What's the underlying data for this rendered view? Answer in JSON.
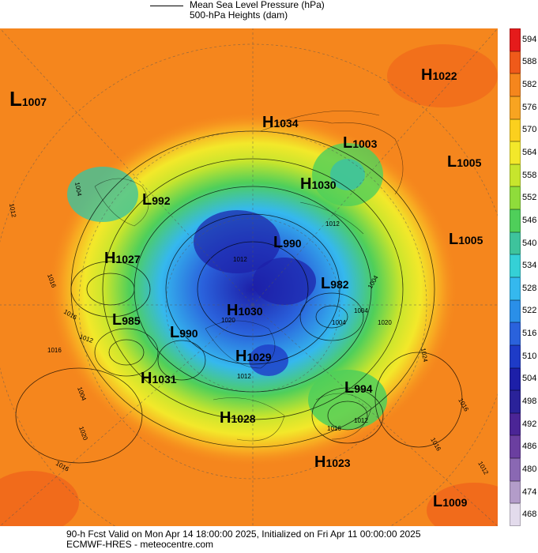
{
  "legend": {
    "line1": "Mean Sea Level Pressure (hPa)",
    "line2": "500-hPa Heights (dam)"
  },
  "colorbar": {
    "ticks": [
      "594",
      "588",
      "582",
      "576",
      "570",
      "564",
      "558",
      "552",
      "546",
      "540",
      "534",
      "528",
      "522",
      "516",
      "510",
      "504",
      "498",
      "492",
      "486",
      "480",
      "474",
      "468"
    ],
    "colors": [
      "#e51b1b",
      "#ef5a1a",
      "#f5861d",
      "#f8a421",
      "#fbd01e",
      "#f3e82a",
      "#c7e52d",
      "#8fdc3b",
      "#4fcf5a",
      "#3ec39c",
      "#35d0d6",
      "#35b8ee",
      "#2a8fe8",
      "#2a62dc",
      "#1e3bc7",
      "#1d1fa8",
      "#2a2299",
      "#4b2596",
      "#6b3fa0",
      "#8a68b3",
      "#b39cc9",
      "#e3dbec"
    ]
  },
  "systems": [
    {
      "type": "L",
      "value": "1007"
    },
    {
      "type": "H",
      "value": "1022"
    },
    {
      "type": "H",
      "value": "1034"
    },
    {
      "type": "L",
      "value": "1003"
    },
    {
      "type": "L",
      "value": "1005"
    },
    {
      "type": "H",
      "value": "1030"
    },
    {
      "type": "L",
      "value": "992"
    },
    {
      "type": "L",
      "value": "990"
    },
    {
      "type": "L",
      "value": "1005"
    },
    {
      "type": "H",
      "value": "1027"
    },
    {
      "type": "L",
      "value": "982"
    },
    {
      "type": "L",
      "value": "985"
    },
    {
      "type": "L",
      "value": "990"
    },
    {
      "type": "H",
      "value": "1030"
    },
    {
      "type": "H",
      "value": "1029"
    },
    {
      "type": "H",
      "value": "1031"
    },
    {
      "type": "L",
      "value": "994"
    },
    {
      "type": "H",
      "value": "1028"
    },
    {
      "type": "H",
      "value": "1023"
    },
    {
      "type": "L",
      "value": "1009"
    }
  ],
  "isobar_labels": [
    "1004",
    "1012",
    "1016",
    "1016",
    "1012",
    "1004",
    "1020",
    "1016",
    "1012",
    "1004",
    "1004",
    "1012",
    "1020",
    "1024",
    "1016",
    "1012",
    "1016",
    "1016",
    "1012",
    "1020",
    "1016",
    "1004",
    "1012"
  ],
  "footer": {
    "line1": "90-h Fcst Valid on Mon Apr 14 18:00:00 2025, Initialized on Fri Apr 11 00:00:00 2025",
    "line2": "ECMWF-HRES  - meteocentre.com"
  }
}
